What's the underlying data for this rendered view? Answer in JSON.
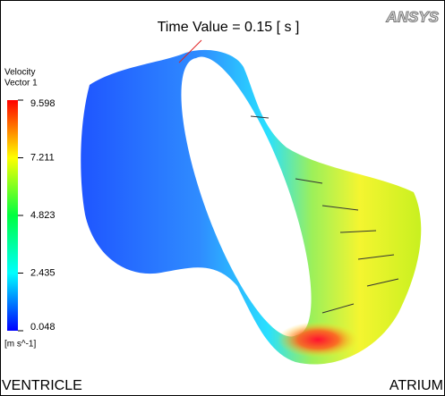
{
  "title": "Time Value = 0.15 [ s ]",
  "logo": "ANSYS",
  "legend": {
    "title_lines": [
      "Velocity",
      "Vector 1"
    ],
    "ticks": [
      9.598,
      7.211,
      4.823,
      2.435,
      0.048
    ],
    "unit": "[m s^-1]"
  },
  "labels": {
    "left": "VENTRICLE",
    "right": "ATRIUM"
  }
}
